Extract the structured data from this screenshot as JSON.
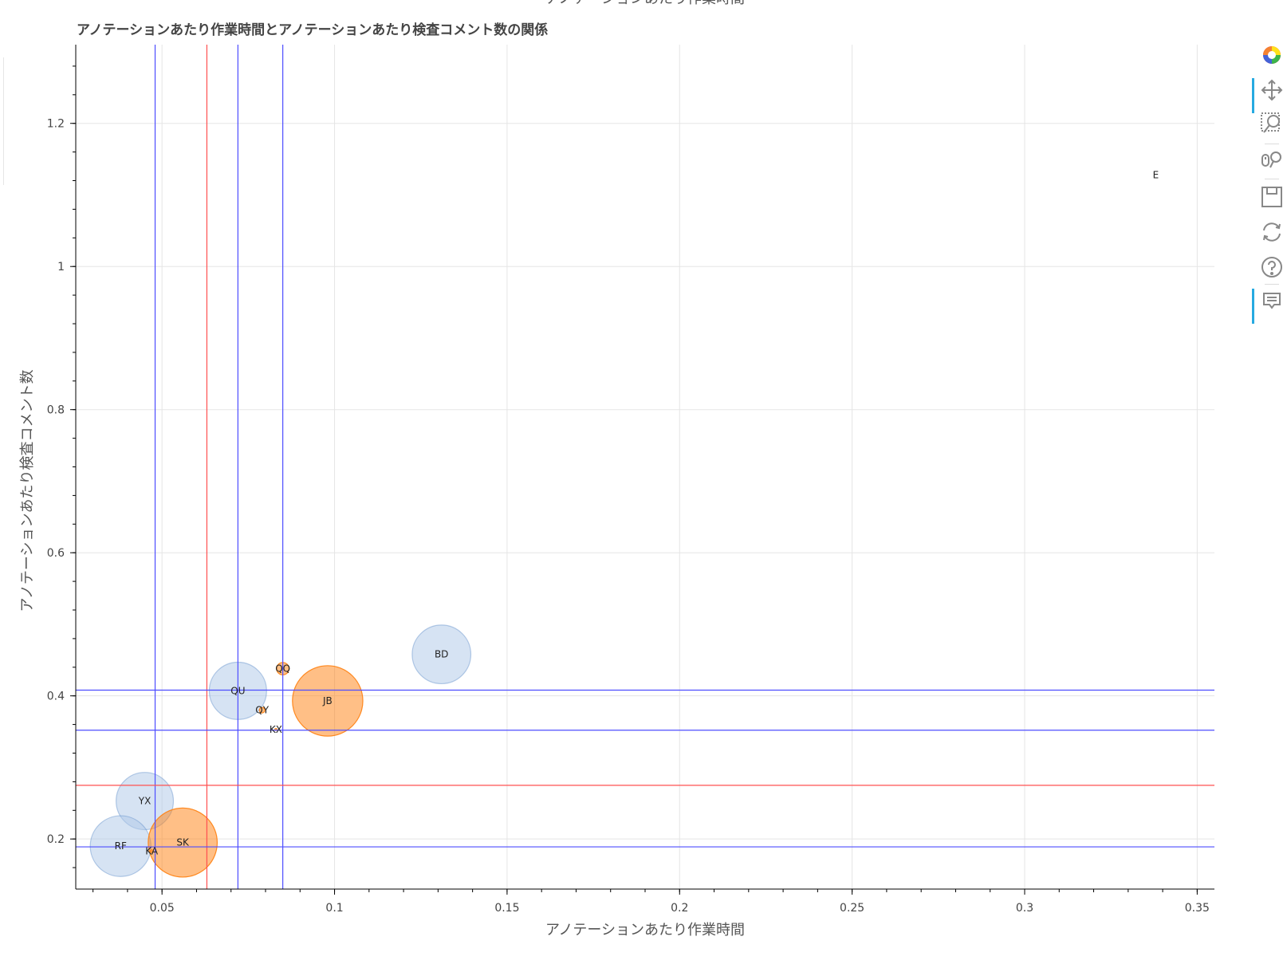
{
  "chart_data": {
    "type": "scatter",
    "top_label": "アノテーションあたり作業時間",
    "title": "アノテーションあたり作業時間とアノテーションあたり検査コメント数の関係",
    "xlabel": "アノテーションあたり作業時間",
    "ylabel": "アノテーションあたり検査コメント数",
    "xlim": [
      0.025,
      0.355
    ],
    "ylim": [
      0.13,
      1.31
    ],
    "x_ticks": [
      0.05,
      0.1,
      0.15,
      0.2,
      0.25,
      0.3,
      0.35
    ],
    "x_tick_labels": [
      "0.05",
      "0.1",
      "0.15",
      "0.2",
      "0.25",
      "0.3",
      "0.35"
    ],
    "y_ticks": [
      0.2,
      0.4,
      0.6,
      0.8,
      1.0,
      1.2
    ],
    "y_tick_labels": [
      "0.2",
      "0.4",
      "0.6",
      "0.8",
      "1",
      "1.2"
    ],
    "grid": true,
    "colors": {
      "blue_fill": "#aec7e8",
      "blue_line": "#5f8fc9",
      "orange_fill": "#ff7f0e",
      "orange_line": "#ff7f0e",
      "ref_blue": "#4d4dff",
      "ref_red": "#ff5050"
    },
    "points": [
      {
        "label": "E",
        "x": 0.338,
        "y": 1.128,
        "size": 0.0,
        "group": "blue"
      },
      {
        "label": "BD",
        "x": 0.131,
        "y": 0.458,
        "size": 0.0085,
        "group": "blue"
      },
      {
        "label": "QQ",
        "x": 0.085,
        "y": 0.438,
        "size": 0.0018,
        "group": "orange"
      },
      {
        "label": "QU",
        "x": 0.072,
        "y": 0.407,
        "size": 0.0083,
        "group": "blue"
      },
      {
        "label": "JB",
        "x": 0.098,
        "y": 0.393,
        "size": 0.0102,
        "group": "orange"
      },
      {
        "label": "QY",
        "x": 0.079,
        "y": 0.38,
        "size": 0.0008,
        "group": "orange"
      },
      {
        "label": "KX",
        "x": 0.083,
        "y": 0.353,
        "size": 0.0003,
        "group": "orange"
      },
      {
        "label": "YX",
        "x": 0.045,
        "y": 0.253,
        "size": 0.0083,
        "group": "blue"
      },
      {
        "label": "RF",
        "x": 0.038,
        "y": 0.19,
        "size": 0.0088,
        "group": "blue"
      },
      {
        "label": "SK",
        "x": 0.056,
        "y": 0.195,
        "size": 0.01,
        "group": "orange"
      },
      {
        "label": "KA",
        "x": 0.047,
        "y": 0.183,
        "size": 0.0004,
        "group": "orange"
      }
    ],
    "vlines_blue": [
      0.048,
      0.072,
      0.085
    ],
    "vlines_red": [
      0.063
    ],
    "hlines_blue": [
      0.408,
      0.352,
      0.189
    ],
    "hlines_red": [
      0.275
    ]
  },
  "toolbar": {
    "tools": [
      {
        "name": "bokeh-logo-icon",
        "interactable": true
      },
      {
        "name": "pan-icon",
        "interactable": true,
        "active": true
      },
      {
        "name": "box-zoom-icon",
        "interactable": true
      },
      {
        "name": "wheel-zoom-icon",
        "interactable": true
      },
      {
        "name": "save-icon",
        "interactable": true
      },
      {
        "name": "reset-icon",
        "interactable": true
      },
      {
        "name": "help-icon",
        "interactable": true
      },
      {
        "name": "hover-icon",
        "interactable": true,
        "active": true
      }
    ]
  }
}
